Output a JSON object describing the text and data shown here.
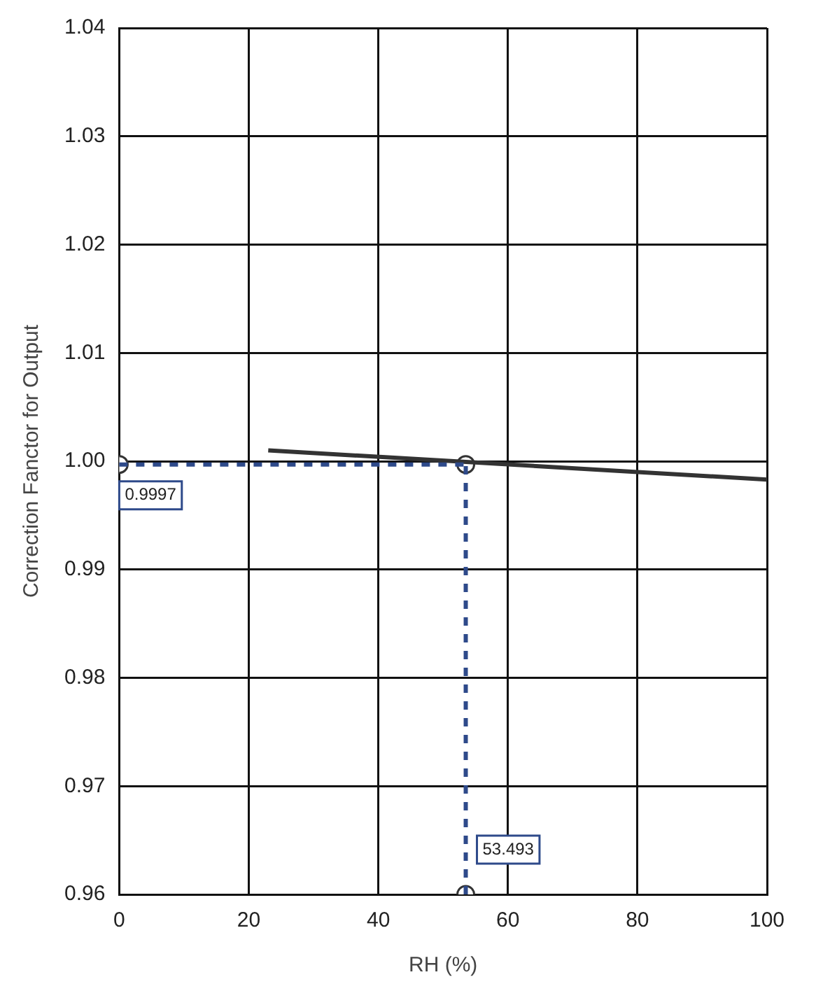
{
  "chart_data": {
    "type": "line",
    "xlabel": "RH (%)",
    "ylabel": "Correction Fanctor for Output",
    "series": [
      {
        "type": "line",
        "color": "#333333",
        "x": [
          23,
          100
        ],
        "values": [
          1.001,
          0.9983
        ],
        "marker": "none"
      },
      {
        "type": "scatter",
        "color": "#333333",
        "x": [
          0,
          53.493,
          53.493
        ],
        "values": [
          0.9997,
          0.9997,
          0.96
        ],
        "marker": "circle"
      }
    ],
    "xlim": [
      0,
      100
    ],
    "xticks": [
      0,
      20,
      40,
      60,
      80,
      100
    ],
    "ylim": [
      0.96,
      1.04
    ],
    "yticks": [
      0.96,
      0.97,
      0.98,
      0.99,
      {
        "value": 1,
        "label": "1.00"
      },
      1.01,
      1.02,
      1.03,
      1.04
    ],
    "ref_lines": [
      {
        "axis": "y",
        "value": 0.9997,
        "label": "0.9997",
        "color": "#2e4a8a",
        "line_style": "dashed"
      },
      {
        "axis": "x",
        "value": 53.493,
        "label": "53.493",
        "color": "#2e4a8a",
        "line_style": "dashed"
      }
    ],
    "grid": true,
    "legend": false
  }
}
